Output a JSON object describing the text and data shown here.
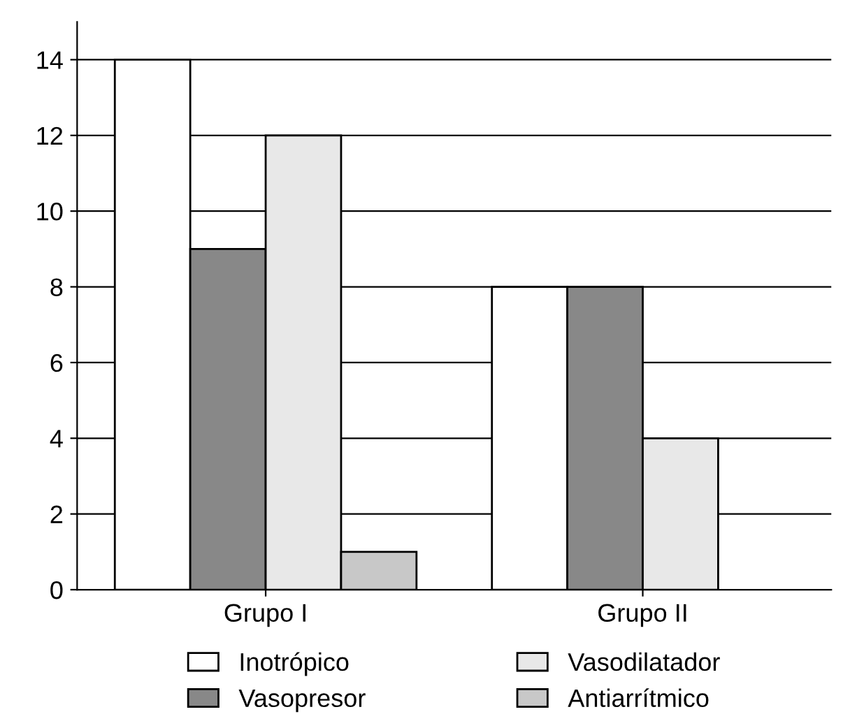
{
  "chart_data": {
    "type": "bar",
    "categories": [
      "Grupo I",
      "Grupo II"
    ],
    "series": [
      {
        "name": "Inotrópico",
        "color": "#ffffff",
        "values": [
          14,
          8
        ]
      },
      {
        "name": "Vasopresor",
        "color": "#888888",
        "values": [
          9,
          8
        ]
      },
      {
        "name": "Vasodilatador",
        "color": "#e8e8e8",
        "values": [
          12,
          4
        ]
      },
      {
        "name": "Antiarrítmico",
        "color": "#c8c8c8",
        "values": [
          1,
          null
        ]
      }
    ],
    "ylim": [
      0,
      15
    ],
    "yticks": [
      0,
      2,
      4,
      6,
      8,
      10,
      12,
      14
    ],
    "grid": "y",
    "legend": "bottom"
  }
}
